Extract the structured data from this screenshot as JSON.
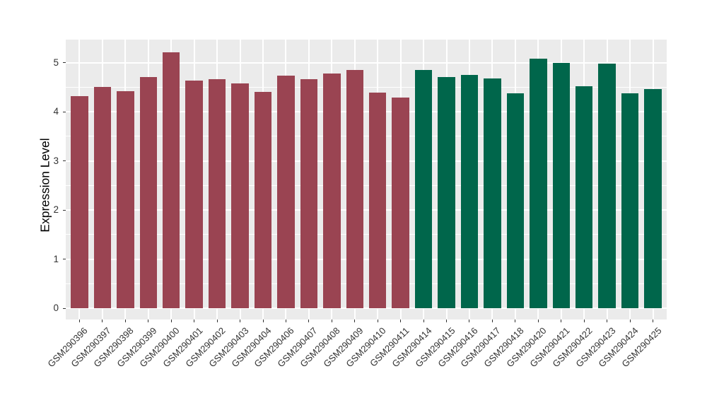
{
  "chart_data": {
    "type": "bar",
    "title": "",
    "xlabel": "",
    "ylabel": "Expression Level",
    "yticks": [
      0,
      1,
      2,
      3,
      4,
      5
    ],
    "ylim": [
      -0.26,
      5.47
    ],
    "grid": "major+minor horizontal white lines, major vertical white lines at category centers",
    "legend_position": "none",
    "panel_background": "#EBEBEB",
    "grid_color": "#FFFFFF",
    "tick_label_color": "#333333",
    "axis_title_color": "#000000",
    "group_colors": {
      "group1": "#9A4452",
      "group2": "#00664B"
    },
    "bars": [
      {
        "label": "GSM290396",
        "value": 4.32,
        "group": "group1"
      },
      {
        "label": "GSM290397",
        "value": 4.51,
        "group": "group1"
      },
      {
        "label": "GSM290398",
        "value": 4.42,
        "group": "group1"
      },
      {
        "label": "GSM290399",
        "value": 4.7,
        "group": "group1"
      },
      {
        "label": "GSM290400",
        "value": 5.21,
        "group": "group1"
      },
      {
        "label": "GSM290401",
        "value": 4.64,
        "group": "group1"
      },
      {
        "label": "GSM290402",
        "value": 4.66,
        "group": "group1"
      },
      {
        "label": "GSM290403",
        "value": 4.58,
        "group": "group1"
      },
      {
        "label": "GSM290404",
        "value": 4.4,
        "group": "group1"
      },
      {
        "label": "GSM290406",
        "value": 4.73,
        "group": "group1"
      },
      {
        "label": "GSM290407",
        "value": 4.66,
        "group": "group1"
      },
      {
        "label": "GSM290408",
        "value": 4.77,
        "group": "group1"
      },
      {
        "label": "GSM290409",
        "value": 4.85,
        "group": "group1"
      },
      {
        "label": "GSM290410",
        "value": 4.39,
        "group": "group1"
      },
      {
        "label": "GSM290411",
        "value": 4.29,
        "group": "group1"
      },
      {
        "label": "GSM290414",
        "value": 4.85,
        "group": "group2"
      },
      {
        "label": "GSM290415",
        "value": 4.7,
        "group": "group2"
      },
      {
        "label": "GSM290416",
        "value": 4.75,
        "group": "group2"
      },
      {
        "label": "GSM290417",
        "value": 4.68,
        "group": "group2"
      },
      {
        "label": "GSM290418",
        "value": 4.38,
        "group": "group2"
      },
      {
        "label": "GSM290420",
        "value": 5.08,
        "group": "group2"
      },
      {
        "label": "GSM290421",
        "value": 5.0,
        "group": "group2"
      },
      {
        "label": "GSM290422",
        "value": 4.52,
        "group": "group2"
      },
      {
        "label": "GSM290423",
        "value": 4.98,
        "group": "group2"
      },
      {
        "label": "GSM290424",
        "value": 4.38,
        "group": "group2"
      },
      {
        "label": "GSM290425",
        "value": 4.46,
        "group": "group2"
      }
    ]
  }
}
